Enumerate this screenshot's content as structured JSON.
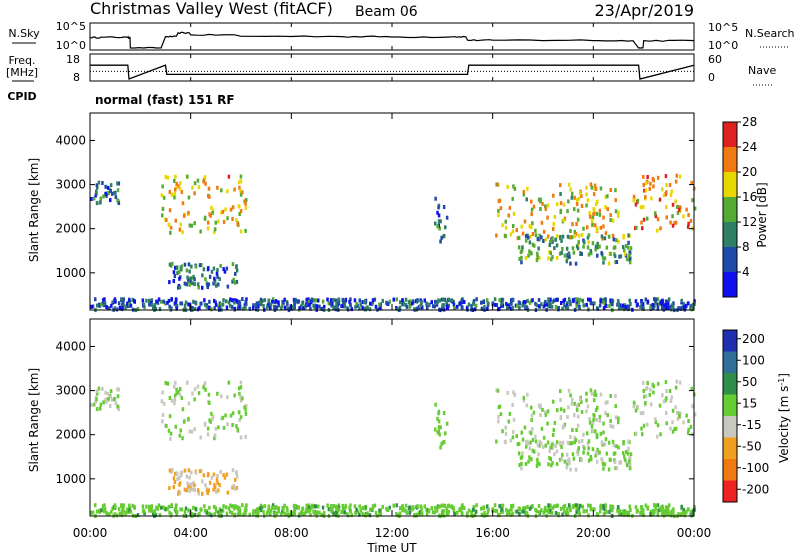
{
  "header": {
    "station": "Christmas Valley West (fitACF)",
    "beam": "Beam 06",
    "date": "23/Apr/2019"
  },
  "labels": {
    "nsky": "N.Sky",
    "nsearch": "N.Search",
    "freq": "Freq.",
    "freq_unit": "[MHz]",
    "nave": "Nave",
    "cpid": "CPID",
    "cpid_value": "normal (fast) 151 RF"
  },
  "ticks": {
    "nsky_left": [
      "10^5",
      "10^0"
    ],
    "nsky_right": [
      "10^5",
      "10^0"
    ],
    "freq_left": [
      "18",
      "8"
    ],
    "nave_right": [
      "60",
      "0"
    ],
    "range": [
      "1000",
      "2000",
      "3000",
      "4000"
    ],
    "time": [
      "00:00",
      "04:00",
      "08:00",
      "12:00",
      "16:00",
      "20:00",
      "00:00"
    ]
  },
  "colorbars": {
    "power": {
      "label": "Power [dB]",
      "ticks": [
        "4",
        "8",
        "12",
        "16",
        "20",
        "24",
        "28"
      ],
      "colors": [
        "#1010ee",
        "#1f4aa8",
        "#2f7f66",
        "#55aa33",
        "#e8d800",
        "#f07a10",
        "#e02020"
      ]
    },
    "velocity": {
      "label": "Velocity [m s^-1]",
      "ticks": [
        "200",
        "100",
        "50",
        "15",
        "-15",
        "-50",
        "-100",
        "-200"
      ],
      "colors": [
        "#1f2fb0",
        "#2f6f9a",
        "#2f8f4a",
        "#66cc33",
        "#c8c8c0",
        "#f0a020",
        "#f07a10",
        "#ee2222"
      ]
    }
  },
  "chart_data": [
    {
      "type": "line",
      "title": "N.Sky / N.Search",
      "x_range": [
        "00:00",
        "24:00"
      ],
      "ylim_left": [
        1,
        100000
      ],
      "series": [
        {
          "name": "N.Sky",
          "x": [
            0,
            0.5,
            1.5,
            1.6,
            3.0,
            3.5,
            4.0,
            6.0,
            10.0,
            12.0,
            14.5,
            15.0,
            16.0,
            20.0,
            21.8,
            22.0,
            24.0
          ],
          "y": [
            200,
            220,
            200,
            1,
            300,
            2000,
            700,
            350,
            300,
            250,
            280,
            50,
            50,
            40,
            1,
            40,
            40
          ]
        }
      ]
    },
    {
      "type": "line",
      "title": "Freq. / Nave",
      "series": [
        {
          "name": "Freq. [MHz]",
          "x": [
            0,
            1.5,
            1.55,
            3.0,
            3.05,
            15.0,
            15.05,
            21.8,
            21.85,
            24.0
          ],
          "y": [
            14,
            14,
            8,
            14,
            10,
            10,
            14,
            14,
            8,
            14
          ]
        },
        {
          "name": "Nave",
          "x": [
            0,
            24
          ],
          "y": [
            20,
            20
          ]
        }
      ]
    },
    {
      "type": "heatmap",
      "xlabel": "Time UT",
      "ylabel": "Slant Range [km]",
      "ylim": [
        180,
        4600
      ],
      "x_range": [
        0,
        24
      ],
      "color_quantity": "Power [dB]",
      "regions": [
        {
          "t": [
            0.0,
            1.2
          ],
          "r": [
            2620,
            3100
          ],
          "value": 10
        },
        {
          "t": [
            2.8,
            6.2
          ],
          "r": [
            1950,
            3250
          ],
          "value": 21
        },
        {
          "t": [
            3.1,
            5.8
          ],
          "r": [
            700,
            1250
          ],
          "value": 10
        },
        {
          "t": [
            13.6,
            14.2
          ],
          "r": [
            1750,
            2850
          ],
          "value": 10
        },
        {
          "t": [
            16.0,
            21.0
          ],
          "r": [
            1800,
            3050
          ],
          "value": 20
        },
        {
          "t": [
            17.0,
            21.5
          ],
          "r": [
            1250,
            1900
          ],
          "value": 13
        },
        {
          "t": [
            21.5,
            24.0
          ],
          "r": [
            2000,
            3250
          ],
          "value": 24
        },
        {
          "t": [
            0.0,
            24.0
          ],
          "r": [
            200,
            450
          ],
          "value": 8
        }
      ]
    },
    {
      "type": "heatmap",
      "xlabel": "Time UT",
      "ylabel": "Slant Range [km]",
      "ylim": [
        180,
        4600
      ],
      "x_range": [
        0,
        24
      ],
      "color_quantity": "Velocity [m s^-1]",
      "regions": [
        {
          "t": [
            0.0,
            1.2
          ],
          "r": [
            2620,
            3100
          ],
          "value": 0
        },
        {
          "t": [
            2.8,
            6.2
          ],
          "r": [
            1950,
            3250
          ],
          "value": 0
        },
        {
          "t": [
            3.1,
            5.8
          ],
          "r": [
            700,
            1250
          ],
          "value": -60
        },
        {
          "t": [
            13.6,
            14.2
          ],
          "r": [
            1750,
            2850
          ],
          "value": 30
        },
        {
          "t": [
            16.0,
            21.0
          ],
          "r": [
            1800,
            3050
          ],
          "value": 0
        },
        {
          "t": [
            17.0,
            21.5
          ],
          "r": [
            1250,
            1900
          ],
          "value": 0
        },
        {
          "t": [
            21.5,
            24.0
          ],
          "r": [
            2000,
            3250
          ],
          "value": 0
        },
        {
          "t": [
            0.0,
            24.0
          ],
          "r": [
            200,
            450
          ],
          "value": 40
        }
      ]
    }
  ]
}
